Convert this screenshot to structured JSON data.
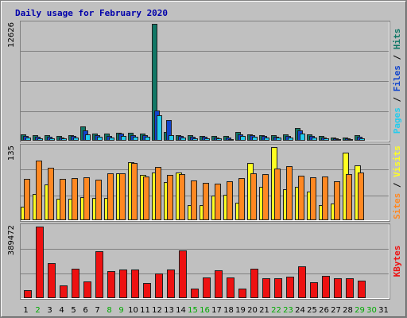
{
  "chart_data": {
    "type": "bar",
    "title": "Daily usage for February 2020",
    "categories": [
      "1",
      "2",
      "3",
      "4",
      "5",
      "6",
      "7",
      "8",
      "9",
      "10",
      "11",
      "12",
      "13",
      "14",
      "15",
      "16",
      "17",
      "18",
      "19",
      "20",
      "21",
      "22",
      "23",
      "24",
      "25",
      "26",
      "27",
      "28",
      "29",
      "30",
      "31"
    ],
    "weekend_days": [
      "2",
      "8",
      "9",
      "15",
      "16",
      "22",
      "23",
      "29",
      "30"
    ],
    "panels": [
      {
        "id": "top",
        "ymax_label": "12626",
        "ymax": 12626,
        "right_label": {
          "parts": [
            "Pages",
            "Files",
            "Hits"
          ],
          "separator": " / "
        },
        "series": [
          {
            "name": "Hits",
            "color": "#117766",
            "values": [
              577,
              500,
              480,
              420,
              520,
              1480,
              720,
              650,
              820,
              780,
              680,
              12626,
              900,
              560,
              480,
              460,
              430,
              390,
              880,
              640,
              560,
              510,
              620,
              1260,
              590,
              410,
              280,
              240,
              530,
              0,
              0
            ]
          },
          {
            "name": "Files",
            "color": "#1144cc",
            "values": [
              400,
              340,
              330,
              300,
              390,
              1000,
              500,
              460,
              700,
              560,
              520,
              3200,
              2200,
              400,
              350,
              320,
              280,
              240,
              620,
              500,
              390,
              370,
              470,
              1080,
              410,
              260,
              160,
              130,
              380,
              0,
              0
            ]
          },
          {
            "name": "Pages",
            "color": "#22ccee",
            "values": [
              240,
              210,
              200,
              180,
              240,
              640,
              310,
              280,
              460,
              360,
              320,
              2700,
              500,
              220,
              190,
              180,
              150,
              120,
              430,
              330,
              230,
              220,
              280,
              720,
              230,
              140,
              70,
              60,
              210,
              0,
              0
            ]
          }
        ]
      },
      {
        "id": "middle",
        "ymax_label": "135",
        "ymax": 135,
        "right_label": {
          "parts": [
            "Sites",
            "Visits"
          ],
          "separator": " / "
        },
        "series": [
          {
            "name": "Visits",
            "color": "#ffff22",
            "values": [
              24,
              48,
              66,
              38,
              38,
              42,
              40,
              40,
              86,
              107,
              83,
              87,
              69,
              88,
              26,
              26,
              45,
              46,
              31,
              105,
              61,
              135,
              57,
              61,
              52,
              27,
              29,
              124,
              101,
              0,
              0
            ]
          },
          {
            "name": "Sites",
            "color": "#ff8822",
            "values": [
              76,
              110,
              97,
              75,
              77,
              78,
              74,
              86,
              86,
              105,
              80,
              98,
              83,
              85,
              72,
              68,
              67,
              71,
              77,
              86,
              84,
              95,
              100,
              81,
              78,
              80,
              71,
              85,
              87,
              0,
              0
            ]
          }
        ]
      },
      {
        "id": "bottom",
        "ymax_label": "389472",
        "ymax": 389472,
        "right_label": {
          "parts": [
            "KBytes"
          ],
          "separator": ""
        },
        "series": [
          {
            "name": "KBytes",
            "color": "#ee1111",
            "values": [
              38000,
              389472,
              186000,
              64000,
              156000,
              87000,
              252000,
              145000,
              154000,
              155000,
              80000,
              132000,
              152000,
              257000,
              46000,
              109000,
              150000,
              110000,
              49000,
              159000,
              107000,
              107000,
              112000,
              170000,
              82000,
              118000,
              106000,
              106000,
              91000,
              0,
              0
            ]
          }
        ]
      }
    ]
  }
}
